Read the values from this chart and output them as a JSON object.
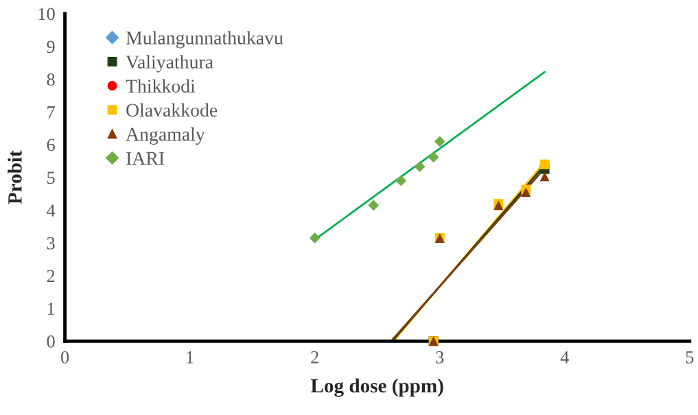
{
  "chart_data": {
    "type": "scatter",
    "xlabel": "Log dose (ppm)",
    "ylabel": "Probit",
    "xlim": [
      0,
      5
    ],
    "xticks": [
      0,
      1,
      2,
      3,
      4,
      5
    ],
    "ylim": [
      0,
      10
    ],
    "yticks": [
      0,
      1,
      2,
      3,
      4,
      5,
      6,
      7,
      8,
      9,
      10
    ],
    "grid": false,
    "legend": "top left",
    "series": [
      {
        "name": "Mulangunnathukavu",
        "marker": "diamond",
        "color": "#5b9bd5"
      },
      {
        "name": "Valiyathura",
        "marker": "square",
        "color": "#1e3d14",
        "x": [
          2.95,
          3.0,
          3.47,
          3.69,
          3.84
        ],
        "values": [
          0,
          null,
          null,
          null,
          5.25
        ]
      },
      {
        "name": "Thikkodi",
        "marker": "circle",
        "color": "#ff0000"
      },
      {
        "name": "Olavakkode",
        "marker": "square",
        "color": "#ffc000",
        "x": [
          2.95,
          3.0,
          3.47,
          3.69,
          3.84
        ],
        "values": [
          0,
          3.15,
          4.2,
          4.63,
          5.4
        ]
      },
      {
        "name": "Angamaly",
        "marker": "triangle",
        "color": "#843c0c",
        "x": [
          2.95,
          3.0,
          3.47,
          3.69,
          3.84
        ],
        "values": [
          0,
          3.15,
          4.15,
          4.55,
          5.03
        ]
      },
      {
        "name": "IARI",
        "marker": "diamond",
        "color": "#70ad47",
        "x": [
          2.0,
          2.47,
          2.69,
          2.84,
          2.95,
          3.0
        ],
        "values": [
          3.15,
          4.15,
          4.9,
          5.33,
          5.62,
          6.1
        ]
      },
      {
        "type": "line",
        "color": "#ffc000",
        "x": [
          2.63,
          3.84
        ],
        "values": [
          0,
          5.47
        ]
      },
      {
        "type": "line",
        "color": "#1e3d14",
        "x": [
          2.62,
          3.84
        ],
        "values": [
          0,
          5.38
        ]
      },
      {
        "type": "line",
        "color": "#843c0c",
        "x": [
          2.61,
          3.84
        ],
        "values": [
          0,
          5.28
        ]
      },
      {
        "type": "line",
        "color": "#00b050",
        "x": [
          2.0,
          3.84
        ],
        "values": [
          3.1,
          8.22
        ]
      }
    ]
  }
}
